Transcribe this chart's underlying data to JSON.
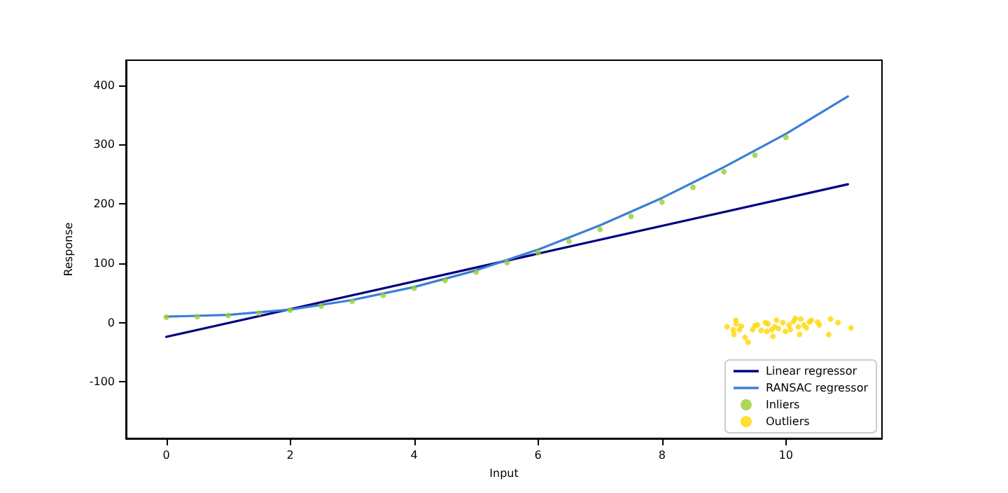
{
  "chart_data": {
    "type": "line",
    "xlabel": "Input",
    "ylabel": "Response",
    "xlim": [
      -0.65,
      11.55
    ],
    "xticks": [
      0,
      2,
      4,
      6,
      8,
      10
    ],
    "ylim": [
      -195,
      442
    ],
    "yticks": [
      -100,
      0,
      100,
      200,
      300,
      400
    ],
    "grid": false,
    "legend": "bottom right",
    "series": [
      {
        "name": "Linear regressor",
        "color": "#000080",
        "marker": "none",
        "line_style": "solid",
        "x": [
          0,
          11
        ],
        "values": [
          -24,
          233
        ]
      },
      {
        "name": "RANSAC regressor",
        "color": "#3a7fd5",
        "marker": "none",
        "line_style": "solid",
        "x": [
          0,
          1,
          2,
          3,
          4,
          5,
          6,
          7,
          8,
          9,
          10,
          11
        ],
        "values": [
          10,
          13,
          22,
          38,
          60,
          88,
          123,
          164,
          210,
          262,
          318,
          381
        ]
      },
      {
        "name": "Inliers",
        "type": "scatter",
        "color": "#9acd32",
        "marker": "circle",
        "x": [
          0,
          0.5,
          1,
          1.5,
          2,
          2.5,
          3,
          3.5,
          4,
          4.5,
          5,
          5.5,
          6,
          6.5,
          7,
          7.5,
          8,
          8.5,
          9,
          9.5,
          10
        ],
        "values": [
          9,
          10,
          12,
          16,
          21,
          28,
          36,
          46,
          58,
          71,
          85,
          101,
          118,
          137,
          157,
          179,
          203,
          228,
          254,
          282,
          312
        ]
      },
      {
        "name": "Outliers",
        "type": "scatter",
        "color": "#ffd700",
        "marker": "circle",
        "x": [
          9.05,
          9.15,
          9.19,
          9.2,
          9.25,
          9.16,
          9.28,
          9.34,
          9.39,
          9.46,
          9.5,
          9.54,
          9.6,
          9.67,
          9.69,
          9.71,
          9.77,
          9.79,
          9.82,
          9.85,
          9.88,
          9.95,
          9.99,
          10.05,
          10.07,
          10.12,
          10.15,
          10.2,
          10.22,
          10.24,
          10.29,
          10.33,
          10.38,
          10.41,
          10.51,
          10.54,
          10.69,
          10.72,
          10.84,
          11.05
        ],
        "values": [
          -7,
          -12,
          4,
          -2,
          -12,
          -20,
          -6,
          -25,
          -33,
          -12,
          -5,
          -4,
          -13,
          0,
          -15,
          -2,
          -12,
          -23,
          -7,
          4,
          -10,
          0,
          -15,
          -4,
          -12,
          2,
          7,
          -7,
          -20,
          6,
          -4,
          -9,
          1,
          4,
          1,
          -4,
          -20,
          6,
          0,
          -9
        ]
      }
    ]
  }
}
